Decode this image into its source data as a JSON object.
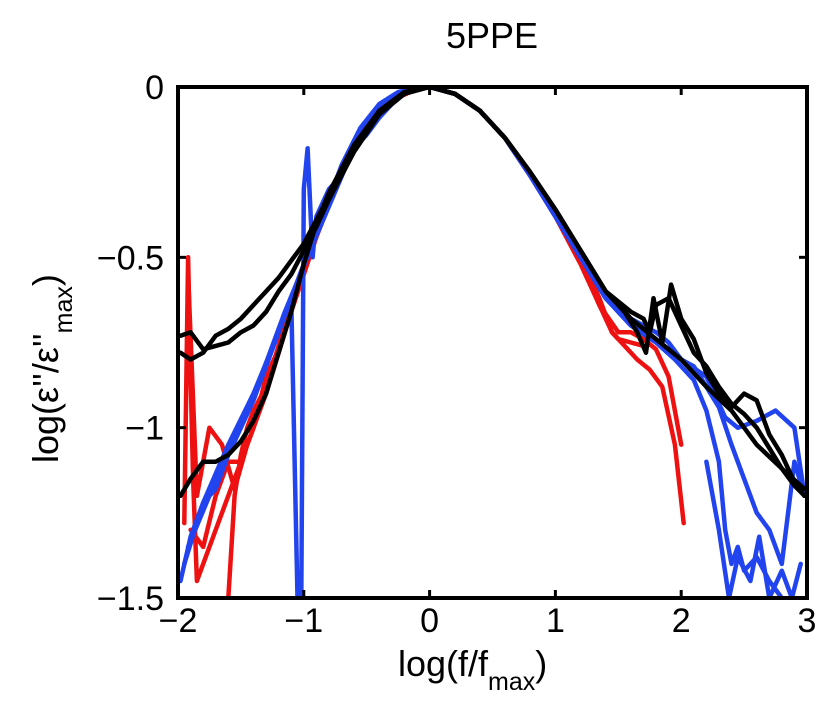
{
  "chart_data": {
    "type": "line",
    "title": "5PPE",
    "xlabel": {
      "main": "log(f/f",
      "sub": "max",
      "close": ")"
    },
    "ylabel": {
      "main": "log(ε''/ε''",
      "sub": "max",
      "close": ")"
    },
    "xlim": [
      -2,
      3
    ],
    "ylim": [
      -1.5,
      0
    ],
    "xticks": [
      -2,
      -1,
      0,
      1,
      2,
      3
    ],
    "yticks": [
      0,
      -0.5,
      -1,
      -1.5
    ],
    "xtick_labels": [
      "−2",
      "−1",
      "0",
      "1",
      "2",
      "3"
    ],
    "ytick_labels": [
      "0",
      "−0.5",
      "−1",
      "−1.5"
    ],
    "colors": {
      "red": "#ee1111",
      "blue": "#2244ee",
      "black": "#000000"
    },
    "series": [
      {
        "name": "red-1",
        "color": "red",
        "x": [
          -1.95,
          -1.92,
          -1.9,
          -1.88,
          -1.85,
          -1.8,
          -1.7,
          -1.6,
          -1.5,
          -1.4,
          -1.2,
          -1.0,
          -0.8,
          -0.6,
          -0.4,
          -0.2,
          0,
          0.2,
          0.4,
          0.6,
          0.8,
          1.0,
          1.2,
          1.35,
          1.45,
          1.55,
          1.65,
          1.75,
          1.85,
          1.95,
          2.02
        ],
        "y": [
          -1.28,
          -0.5,
          -0.85,
          -1.15,
          -1.45,
          -1.4,
          -1.3,
          -1.2,
          -1.1,
          -1.0,
          -0.78,
          -0.53,
          -0.32,
          -0.16,
          -0.06,
          -0.01,
          0,
          -0.02,
          -0.07,
          -0.15,
          -0.26,
          -0.38,
          -0.5,
          -0.62,
          -0.72,
          -0.76,
          -0.8,
          -0.83,
          -0.88,
          -1.05,
          -1.28
        ]
      },
      {
        "name": "red-2",
        "color": "red",
        "x": [
          -1.92,
          -1.85,
          -1.75,
          -1.65,
          -1.55,
          -1.45,
          -1.3,
          -1.1,
          -0.9,
          -0.7,
          -0.5,
          -0.3,
          -0.1,
          0,
          0.2,
          0.4,
          0.6,
          0.8,
          1.0,
          1.2,
          1.35,
          1.5,
          1.6,
          1.7,
          1.8,
          1.9,
          2.0
        ],
        "y": [
          -0.55,
          -1.2,
          -1.0,
          -1.05,
          -1.18,
          -1.05,
          -0.9,
          -0.66,
          -0.44,
          -0.25,
          -0.12,
          -0.04,
          -0.005,
          0,
          -0.02,
          -0.07,
          -0.15,
          -0.26,
          -0.38,
          -0.51,
          -0.64,
          -0.72,
          -0.72,
          -0.74,
          -0.77,
          -0.85,
          -1.05
        ]
      },
      {
        "name": "red-3",
        "color": "red",
        "x": [
          -1.9,
          -1.8,
          -1.7,
          -1.6,
          -1.5,
          -1.4,
          -1.3,
          -1.2,
          -1.0,
          -0.8,
          -0.6,
          -0.4,
          -0.2,
          0,
          0.2,
          0.4,
          0.6,
          0.8,
          1.0,
          1.2,
          1.35,
          1.45,
          1.5,
          1.6,
          1.7
        ],
        "y": [
          -1.3,
          -1.35,
          -1.2,
          -1.1,
          -1.1,
          -1.0,
          -0.85,
          -0.77,
          -0.53,
          -0.32,
          -0.16,
          -0.06,
          -0.01,
          0,
          -0.02,
          -0.07,
          -0.15,
          -0.26,
          -0.38,
          -0.52,
          -0.64,
          -0.72,
          -0.74,
          -0.75,
          -0.76
        ]
      },
      {
        "name": "red-4",
        "color": "red",
        "x": [
          -1.6,
          -1.55,
          -1.5,
          -1.45,
          -1.4,
          -1.3,
          -1.2,
          -1.1,
          -1.0
        ],
        "y": [
          -1.5,
          -1.2,
          -1.08,
          -1.0,
          -0.95,
          -0.88,
          -0.76,
          -0.62,
          -0.52
        ]
      },
      {
        "name": "blue-1",
        "color": "blue",
        "x": [
          -1.98,
          -1.9,
          -1.8,
          -1.7,
          -1.6,
          -1.5,
          -1.4,
          -1.3,
          -1.2,
          -1.1,
          -1.05,
          -1.02,
          -1.0,
          -0.97,
          -0.93,
          -0.9,
          -0.8,
          -0.7,
          -0.6,
          -0.5,
          -0.4,
          -0.3,
          -0.2,
          -0.1,
          0,
          0.2,
          0.4,
          0.6,
          0.8,
          1.0,
          1.2,
          1.4,
          1.6,
          1.8,
          1.9,
          2.0,
          2.1,
          2.2,
          2.3,
          2.4,
          2.5,
          2.6,
          2.7,
          2.8,
          2.9,
          2.98
        ],
        "y": [
          -1.45,
          -1.32,
          -1.22,
          -1.18,
          -1.08,
          -1.0,
          -0.92,
          -0.82,
          -0.72,
          -0.62,
          -1.5,
          -1.5,
          -0.3,
          -0.18,
          -0.5,
          -0.38,
          -0.3,
          -0.26,
          -0.18,
          -0.14,
          -0.09,
          -0.05,
          -0.02,
          -0.005,
          0,
          -0.02,
          -0.07,
          -0.15,
          -0.26,
          -0.38,
          -0.5,
          -0.62,
          -0.68,
          -0.72,
          -0.75,
          -0.8,
          -0.82,
          -0.88,
          -0.94,
          -1.05,
          -1.15,
          -1.25,
          -1.3,
          -1.4,
          -1.1,
          -1.2
        ]
      },
      {
        "name": "blue-2",
        "color": "blue",
        "x": [
          -1.95,
          -1.8,
          -1.6,
          -1.4,
          -1.2,
          -1.0,
          -0.85,
          -0.7,
          -0.55,
          -0.4,
          -0.25,
          -0.1,
          0,
          0.2,
          0.4,
          0.6,
          0.8,
          1.0,
          1.2,
          1.4,
          1.6,
          1.8,
          1.95,
          2.1,
          2.2,
          2.3,
          2.35,
          2.4,
          2.45,
          2.5,
          2.6,
          2.7,
          2.8
        ],
        "y": [
          -1.4,
          -1.22,
          -1.05,
          -0.9,
          -0.72,
          -0.52,
          -0.38,
          -0.23,
          -0.12,
          -0.05,
          -0.015,
          -0.002,
          0,
          -0.02,
          -0.07,
          -0.15,
          -0.26,
          -0.38,
          -0.5,
          -0.62,
          -0.7,
          -0.75,
          -0.8,
          -0.86,
          -0.95,
          -1.1,
          -1.3,
          -1.4,
          -1.35,
          -1.42,
          -1.38,
          -1.45,
          -1.5
        ]
      },
      {
        "name": "blue-3",
        "color": "blue",
        "x": [
          -1.92,
          -1.75,
          -1.55,
          -1.35,
          -1.15,
          -0.95,
          -0.8,
          -0.65,
          -0.5,
          -0.35,
          -0.2,
          -0.05,
          0,
          0.2,
          0.4,
          0.6,
          0.8,
          1.0,
          1.2,
          1.4,
          1.6,
          1.8,
          2.0,
          2.2,
          2.35,
          2.45,
          2.6,
          2.75,
          2.9,
          2.98
        ],
        "y": [
          -1.35,
          -1.2,
          -1.02,
          -0.86,
          -0.66,
          -0.48,
          -0.35,
          -0.22,
          -0.11,
          -0.045,
          -0.012,
          0,
          0,
          -0.02,
          -0.07,
          -0.15,
          -0.26,
          -0.38,
          -0.5,
          -0.62,
          -0.7,
          -0.74,
          -0.8,
          -0.85,
          -0.97,
          -1.0,
          -0.98,
          -0.95,
          -1.0,
          -1.2
        ]
      },
      {
        "name": "blue-4",
        "color": "blue",
        "x": [
          2.2,
          2.3,
          2.38,
          2.45,
          2.55,
          2.62,
          2.7,
          2.8,
          2.88,
          2.95
        ],
        "y": [
          -1.1,
          -1.3,
          -1.5,
          -1.38,
          -1.45,
          -1.32,
          -1.5,
          -1.42,
          -1.5,
          -1.4
        ]
      },
      {
        "name": "black-1",
        "color": "black",
        "x": [
          -1.98,
          -1.9,
          -1.8,
          -1.7,
          -1.6,
          -1.5,
          -1.4,
          -1.3,
          -1.2,
          -1.1,
          -1.0,
          -0.9,
          -0.8,
          -0.6,
          -0.4,
          -0.2,
          0,
          0.2,
          0.4,
          0.6,
          0.8,
          1.0,
          1.2,
          1.4,
          1.6,
          1.7,
          1.75,
          1.8,
          1.9,
          2.0,
          2.1,
          2.2,
          2.3,
          2.4,
          2.5,
          2.6,
          2.7,
          2.8,
          2.9,
          2.98
        ],
        "y": [
          -0.73,
          -0.72,
          -0.77,
          -0.76,
          -0.75,
          -0.72,
          -0.7,
          -0.66,
          -0.6,
          -0.55,
          -0.48,
          -0.41,
          -0.33,
          -0.19,
          -0.08,
          -0.02,
          0,
          -0.02,
          -0.07,
          -0.15,
          -0.25,
          -0.36,
          -0.48,
          -0.6,
          -0.66,
          -0.68,
          -0.72,
          -0.64,
          -0.62,
          -0.7,
          -0.78,
          -0.82,
          -0.88,
          -0.93,
          -0.96,
          -1.0,
          -1.06,
          -1.12,
          -1.17,
          -1.2
        ]
      },
      {
        "name": "black-2",
        "color": "black",
        "x": [
          -1.98,
          -1.9,
          -1.8,
          -1.7,
          -1.6,
          -1.5,
          -1.4,
          -1.3,
          -1.2,
          -1.1,
          -1.0,
          -0.9,
          -0.8,
          -0.6,
          -0.4,
          -0.2,
          0,
          0.2,
          0.4,
          0.6,
          0.8,
          1.0,
          1.2,
          1.4,
          1.55,
          1.65,
          1.72,
          1.78,
          1.85,
          1.92,
          2.0,
          2.1,
          2.2,
          2.3,
          2.4,
          2.5,
          2.6,
          2.7,
          2.8,
          2.9,
          2.98
        ],
        "y": [
          -0.78,
          -0.8,
          -0.78,
          -0.73,
          -0.71,
          -0.68,
          -0.64,
          -0.6,
          -0.56,
          -0.51,
          -0.46,
          -0.39,
          -0.32,
          -0.18,
          -0.07,
          -0.015,
          0,
          -0.02,
          -0.07,
          -0.15,
          -0.25,
          -0.36,
          -0.48,
          -0.6,
          -0.66,
          -0.72,
          -0.78,
          -0.62,
          -0.75,
          -0.58,
          -0.68,
          -0.74,
          -0.84,
          -0.9,
          -0.94,
          -0.9,
          -0.92,
          -1.02,
          -1.08,
          -1.16,
          -1.2
        ]
      },
      {
        "name": "black-3",
        "color": "black",
        "x": [
          -1.98,
          -1.9,
          -1.8,
          -1.7,
          -1.6,
          -1.5,
          -1.4,
          -1.3,
          -1.2,
          -1.1,
          -1.0,
          -0.9,
          -0.8,
          -0.6,
          -0.4,
          -0.2,
          0,
          0.2,
          0.4,
          0.6,
          0.8,
          1.0,
          1.2,
          1.4,
          1.6,
          1.8,
          2.0,
          2.2,
          2.4,
          2.6,
          2.8,
          2.98
        ],
        "y": [
          -1.2,
          -1.15,
          -1.1,
          -1.1,
          -1.08,
          -1.04,
          -0.98,
          -0.9,
          -0.78,
          -0.66,
          -0.52,
          -0.4,
          -0.31,
          -0.17,
          -0.07,
          -0.015,
          0,
          -0.02,
          -0.07,
          -0.15,
          -0.25,
          -0.36,
          -0.48,
          -0.6,
          -0.68,
          -0.74,
          -0.8,
          -0.88,
          -0.95,
          -1.05,
          -1.12,
          -1.18
        ]
      }
    ]
  }
}
